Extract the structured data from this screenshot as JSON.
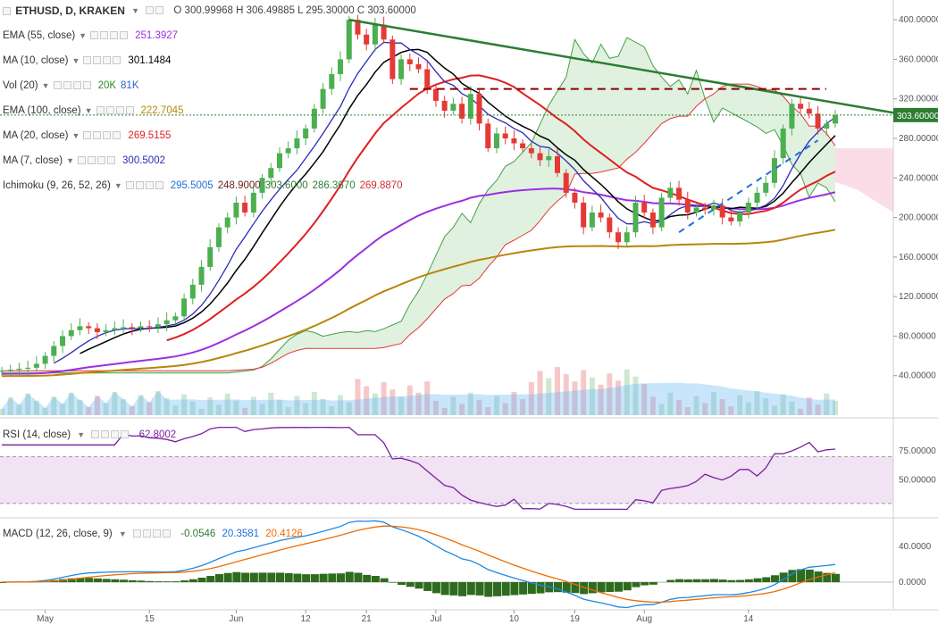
{
  "header": {
    "symbol": "ETHUSD, D, KRAKEN",
    "ohlc": "O 300.99968 H 306.49885 L 295.30000 C 303.60000"
  },
  "legends": [
    {
      "label": "EMA (55, close)",
      "value": "251.3927",
      "color": "#9b2fe0"
    },
    {
      "label": "MA (10, close)",
      "value": "301.1484",
      "color": "#000000"
    },
    {
      "label": "Vol (20)",
      "value": "20K",
      "value2": "81K",
      "color": "#2a8a2a",
      "color2": "#2a62c9"
    },
    {
      "label": "EMA (100, close)",
      "value": "222.7045",
      "color": "#b8860b"
    },
    {
      "label": "MA (20, close)",
      "value": "269.5155",
      "color": "#e01f1f"
    },
    {
      "label": "MA (7, close)",
      "value": "300.5002",
      "color": "#2b2bb8"
    },
    {
      "label": "Ichimoku (9, 26, 52, 26)",
      "value": "295.5005",
      "value2": "248.9000",
      "value3": "303.6000",
      "value4": "286.3670",
      "value5": "269.8870",
      "color": "#1e6fd9",
      "color2": "#6b1f1f",
      "color3": "#2e7d32",
      "color4": "#2e7d32",
      "color5": "#d32f2f"
    }
  ],
  "rsi": {
    "label": "RSI (14, close)",
    "value": "62.8002",
    "color": "#7b1fa2"
  },
  "macd": {
    "label": "MACD (12, 26, close, 9)",
    "v1": "-0.0546",
    "v2": "20.3581",
    "v3": "20.4126",
    "c1": "#2e7d32",
    "c2": "#1e6fd9",
    "c3": "#ef6c00"
  },
  "price_axis": {
    "ticks": [
      "400.00000",
      "360.00000",
      "320.00000",
      "280.00000",
      "240.00000",
      "200.00000",
      "160.00000",
      "120.00000",
      "80.00000",
      "40.00000"
    ],
    "current": "303.60000"
  },
  "rsi_axis": {
    "ticks": [
      "75.00000",
      "50.00000"
    ]
  },
  "macd_axis": {
    "ticks": [
      "40.0000",
      "0.0000"
    ]
  },
  "time_axis": {
    "ticks": [
      "May",
      "15",
      "Jun",
      "12",
      "21",
      "Jul",
      "10",
      "19",
      "Aug",
      "14"
    ]
  },
  "chart_data": {
    "type": "candlestick",
    "title": "ETHUSD, D, KRAKEN",
    "ylim": [
      0,
      420
    ],
    "x_ticks": [
      "May",
      "15",
      "Jun",
      "12",
      "21",
      "Jul",
      "10",
      "19",
      "Aug",
      "14"
    ],
    "last_close": 303.6,
    "closes": [
      45,
      46,
      47,
      48,
      52,
      60,
      70,
      80,
      86,
      90,
      88,
      84,
      86,
      88,
      89,
      88,
      90,
      89,
      92,
      96,
      100,
      118,
      132,
      150,
      170,
      190,
      200,
      215,
      205,
      225,
      240,
      250,
      265,
      270,
      280,
      290,
      310,
      330,
      345,
      360,
      400,
      385,
      375,
      395,
      380,
      340,
      360,
      355,
      350,
      330,
      318,
      308,
      315,
      300,
      325,
      295,
      270,
      285,
      280,
      275,
      270,
      265,
      258,
      262,
      245,
      225,
      215,
      190,
      205,
      200,
      185,
      175,
      185,
      215,
      205,
      190,
      220,
      230,
      218,
      205,
      210,
      208,
      212,
      200,
      196,
      205,
      215,
      225,
      235,
      260,
      290,
      315,
      310,
      305,
      290,
      295,
      303.6
    ],
    "series": [
      {
        "name": "MA (7, close)",
        "last": 300.5002
      },
      {
        "name": "MA (10, close)",
        "last": 301.1484
      },
      {
        "name": "MA (20, close)",
        "last": 269.5155
      },
      {
        "name": "EMA (55, close)",
        "last": 251.3927
      },
      {
        "name": "EMA (100, close)",
        "last": 222.7045
      }
    ],
    "rsi": {
      "ylim": [
        20,
        100
      ],
      "ticks": [
        75,
        50
      ],
      "last": 62.8002
    },
    "macd": {
      "ylim": [
        -30,
        70
      ],
      "ticks": [
        40,
        0
      ],
      "macd": 20.3581,
      "signal": 20.4126,
      "hist": -0.0546
    }
  }
}
